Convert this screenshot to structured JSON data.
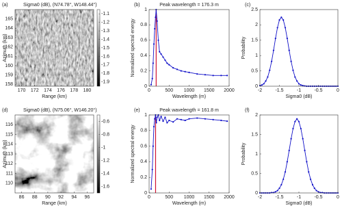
{
  "chart_data": [
    {
      "type": "image",
      "label": "(a)",
      "title": "Sigma0 (dB), (N74.78°, W148.44°)",
      "xlabel": "Range (km)",
      "ylabel": "Azimuth (km)",
      "xlim": [
        169,
        181
      ],
      "xticks": [
        170,
        172,
        174,
        176,
        178,
        180
      ],
      "ylim": [
        157.8,
        166
      ],
      "yticks": [
        158,
        159,
        160,
        161,
        162,
        163,
        164,
        165
      ],
      "clim": [
        -1.95,
        -1.05
      ],
      "cticks": [
        -1.1,
        -1.2,
        -1.3,
        -1.4,
        -1.5,
        -1.6,
        -1.7,
        -1.8,
        -1.9
      ]
    },
    {
      "type": "line",
      "label": "(b)",
      "title": "Peak wavelength = 176.3 m",
      "xlabel": "Wavelength (m)",
      "ylabel": "Normalized spectral energy",
      "xlim": [
        0,
        2000
      ],
      "xticks": [
        0,
        500,
        1000,
        1500,
        2000
      ],
      "ylim": [
        0,
        1
      ],
      "yticks": [
        0,
        0.2,
        0.4,
        0.6,
        0.8,
        1
      ],
      "color": "#1010c8",
      "vline": 176.3,
      "vline_color": "#d01030",
      "x": [
        50,
        80,
        100,
        120,
        140,
        160,
        176.3,
        200,
        230,
        260,
        300,
        350,
        400,
        450,
        500,
        600,
        700,
        800,
        900,
        1000,
        1200,
        1400,
        1600,
        1800,
        1950
      ],
      "values": [
        0.02,
        0.1,
        0.3,
        0.55,
        0.75,
        0.9,
        1.0,
        0.85,
        0.6,
        0.45,
        0.42,
        0.38,
        0.34,
        0.3,
        0.28,
        0.24,
        0.22,
        0.2,
        0.19,
        0.18,
        0.16,
        0.15,
        0.14,
        0.14,
        0.14
      ]
    },
    {
      "type": "line",
      "label": "(c)",
      "xlabel": "Sigma0 (dB)",
      "ylabel": "Probability",
      "xlim": [
        -2,
        0
      ],
      "xticks": [
        -2,
        -1.5,
        -1,
        -0.5,
        0
      ],
      "ylim": [
        0,
        2.5
      ],
      "yticks": [
        0,
        0.5,
        1,
        1.5,
        2,
        2.5
      ],
      "color": "#1010c8",
      "x": [
        -2,
        -1.95,
        -1.9,
        -1.85,
        -1.8,
        -1.75,
        -1.7,
        -1.65,
        -1.6,
        -1.55,
        -1.5,
        -1.45,
        -1.4,
        -1.35,
        -1.3,
        -1.25,
        -1.2,
        -1.15,
        -1.1,
        -1.05,
        -1,
        -0.95,
        -0.9,
        -0.85,
        -0.8,
        -0.75,
        -0.7,
        -0.65,
        -0.6,
        -0.55,
        -0.5,
        -0.45,
        -0.4,
        -0.35,
        -0.3,
        -0.25,
        -0.2,
        -0.15,
        -0.1,
        -0.05,
        0
      ],
      "values": [
        0.02,
        0.04,
        0.08,
        0.17,
        0.3,
        0.52,
        0.81,
        1.17,
        1.56,
        1.91,
        2.16,
        2.25,
        2.16,
        1.91,
        1.56,
        1.17,
        0.81,
        0.52,
        0.3,
        0.17,
        0.08,
        0.04,
        0.02,
        0.01,
        0,
        0,
        0,
        0,
        0,
        0,
        0,
        0,
        0,
        0,
        0,
        0,
        0,
        0,
        0,
        0,
        0
      ]
    },
    {
      "type": "image",
      "label": "(d)",
      "title": "Sigma0 (dB), (N75.06°, W146.20°)",
      "xlabel": "Range (km)",
      "ylabel": "Azimuth (km)",
      "xlim": [
        85,
        97
      ],
      "xticks": [
        86,
        88,
        90,
        92,
        94,
        96
      ],
      "ylim": [
        109,
        117
      ],
      "yticks": [
        110,
        111,
        112,
        113,
        114,
        115,
        116
      ],
      "clim": [
        -1.7,
        -0.5
      ],
      "cticks": [
        -0.6,
        -0.8,
        -1,
        -1.2,
        -1.4,
        -1.6
      ]
    },
    {
      "type": "line",
      "label": "(e)",
      "title": "Peak wavelength = 161.8 m",
      "xlabel": "Wavelength (m)",
      "ylabel": "Normalized spectral energy",
      "xlim": [
        0,
        2000
      ],
      "xticks": [
        0,
        500,
        1000,
        1500,
        2000
      ],
      "ylim": [
        0,
        1
      ],
      "yticks": [
        0,
        0.2,
        0.4,
        0.6,
        0.8,
        1
      ],
      "color": "#1010c8",
      "vline": 161.8,
      "vline_color": "#d01030",
      "x": [
        50,
        80,
        100,
        120,
        140,
        161.8,
        180,
        200,
        230,
        260,
        300,
        350,
        400,
        450,
        500,
        600,
        700,
        800,
        900,
        1000,
        1200,
        1400,
        1600,
        1800,
        1950
      ],
      "values": [
        0.05,
        0.3,
        0.6,
        0.85,
        0.95,
        1.0,
        0.9,
        0.97,
        1.0,
        0.93,
        0.98,
        0.92,
        0.97,
        0.9,
        0.93,
        0.91,
        0.95,
        0.94,
        0.93,
        0.95,
        0.96,
        0.95,
        0.94,
        0.93,
        0.92
      ]
    },
    {
      "type": "line",
      "label": "(f)",
      "xlabel": "Sigma0 (dB)",
      "ylabel": "Probability",
      "xlim": [
        -2,
        0
      ],
      "xticks": [
        -2,
        -1.5,
        -1,
        -0.5,
        0
      ],
      "ylim": [
        0,
        2
      ],
      "yticks": [
        0,
        0.5,
        1,
        1.5,
        2
      ],
      "color": "#1010c8",
      "x": [
        -2,
        -1.95,
        -1.9,
        -1.85,
        -1.8,
        -1.75,
        -1.7,
        -1.65,
        -1.6,
        -1.55,
        -1.5,
        -1.45,
        -1.4,
        -1.35,
        -1.3,
        -1.25,
        -1.2,
        -1.15,
        -1.1,
        -1.05,
        -1,
        -0.95,
        -0.9,
        -0.85,
        -0.8,
        -0.75,
        -0.7,
        -0.65,
        -0.6,
        -0.55,
        -0.5,
        -0.45,
        -0.4,
        -0.35,
        -0.3,
        -0.25,
        -0.2,
        -0.15,
        -0.1,
        -0.05,
        0
      ],
      "values": [
        0,
        0,
        0,
        0,
        0,
        0,
        0.01,
        0.01,
        0.03,
        0.06,
        0.12,
        0.21,
        0.35,
        0.54,
        0.8,
        1.09,
        1.39,
        1.65,
        1.83,
        1.9,
        1.83,
        1.65,
        1.39,
        1.09,
        0.8,
        0.54,
        0.35,
        0.21,
        0.12,
        0.06,
        0.03,
        0.01,
        0.01,
        0,
        0,
        0,
        0,
        0,
        0,
        0,
        0
      ]
    }
  ]
}
